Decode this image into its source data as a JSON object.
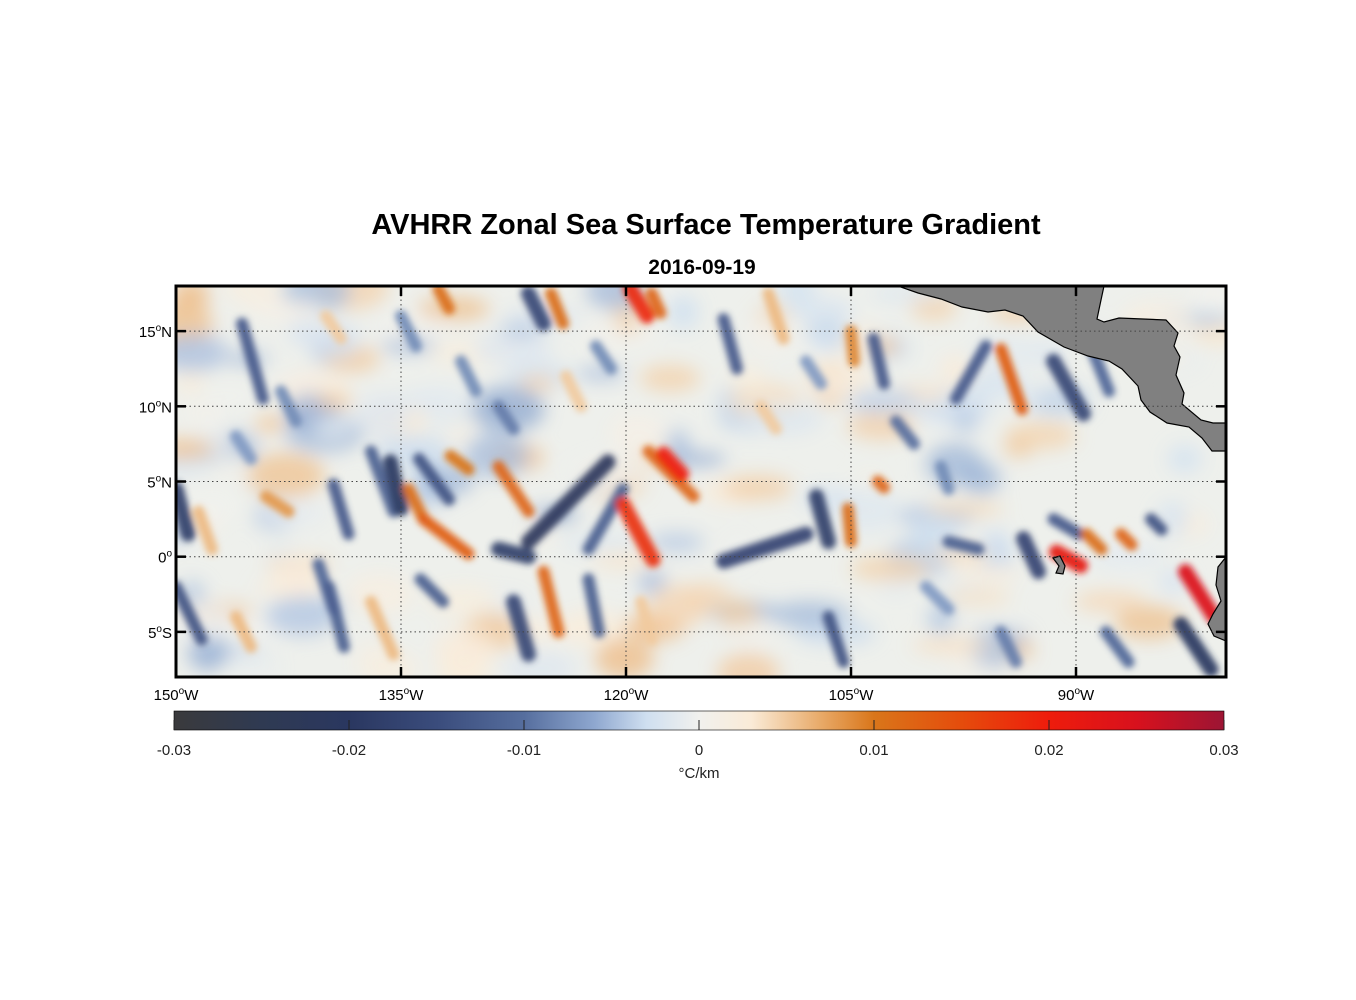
{
  "title": "AVHRR Zonal Sea Surface Temperature Gradient",
  "subtitle": "2016-09-19",
  "map": {
    "lon_range": [
      -150,
      -80
    ],
    "lat_range": [
      -8,
      18
    ],
    "x_ticks": [
      {
        "lon": -150,
        "deg": "150",
        "hem": "W"
      },
      {
        "lon": -135,
        "deg": "135",
        "hem": "W"
      },
      {
        "lon": -120,
        "deg": "120",
        "hem": "W"
      },
      {
        "lon": -105,
        "deg": "105",
        "hem": "W"
      },
      {
        "lon": -90,
        "deg": "90",
        "hem": "W"
      }
    ],
    "y_ticks": [
      {
        "lat": 15,
        "deg": "15",
        "hem": "N"
      },
      {
        "lat": 10,
        "deg": "10",
        "hem": "N"
      },
      {
        "lat": 5,
        "deg": "5",
        "hem": "N"
      },
      {
        "lat": 0,
        "deg": "0",
        "hem": ""
      },
      {
        "lat": -5,
        "deg": "5",
        "hem": "S"
      }
    ],
    "degree_symbol": "o",
    "land_color": "#808080",
    "features": [
      {
        "lon1": -150,
        "lat1": 4.5,
        "lon2": -149.2,
        "lat2": 1.5,
        "v": -0.018
      },
      {
        "lon1": -148.5,
        "lat1": 3,
        "lon2": -147.6,
        "lat2": 0.5,
        "v": 0.006
      },
      {
        "lon1": -150,
        "lat1": -2,
        "lon2": -148.3,
        "lat2": -5.5,
        "v": -0.014
      },
      {
        "lon1": -145.6,
        "lat1": 15.5,
        "lon2": -144.2,
        "lat2": 10.5,
        "v": -0.013
      },
      {
        "lon1": -144,
        "lat1": 4,
        "lon2": -142.5,
        "lat2": 3,
        "v": 0.008
      },
      {
        "lon1": -146,
        "lat1": -4,
        "lon2": -145,
        "lat2": -6,
        "v": 0.006
      },
      {
        "lon1": -139.5,
        "lat1": 4.8,
        "lon2": -138.5,
        "lat2": 1.5,
        "v": -0.013
      },
      {
        "lon1": -137,
        "lat1": 7,
        "lon2": -135.5,
        "lat2": 3,
        "v": -0.012
      },
      {
        "lon1": -140.5,
        "lat1": -0.5,
        "lon2": -139.5,
        "lat2": -3.5,
        "v": -0.011
      },
      {
        "lon1": -139.8,
        "lat1": -2,
        "lon2": -138.8,
        "lat2": -6,
        "v": -0.012
      },
      {
        "lon1": -137,
        "lat1": -3,
        "lon2": -135.5,
        "lat2": -6.5,
        "v": 0.006
      },
      {
        "lon1": -135.7,
        "lat1": 6.3,
        "lon2": -135,
        "lat2": 3.2,
        "v": -0.02
      },
      {
        "lon1": -133.8,
        "lat1": 6.5,
        "lon2": -131.8,
        "lat2": 3.8,
        "v": -0.014
      },
      {
        "lon1": -134.5,
        "lat1": 4.5,
        "lon2": -133.5,
        "lat2": 2.5,
        "v": 0.011
      },
      {
        "lon1": -133.5,
        "lat1": 2.5,
        "lon2": -130.5,
        "lat2": 0.2,
        "v": 0.013
      },
      {
        "lon1": -131.7,
        "lat1": 6.7,
        "lon2": -130.5,
        "lat2": 5.8,
        "v": 0.01
      },
      {
        "lon1": -132.5,
        "lat1": 17.8,
        "lon2": -131.8,
        "lat2": 16.5,
        "v": 0.011
      },
      {
        "lon1": -133.7,
        "lat1": -1.5,
        "lon2": -132.2,
        "lat2": -3,
        "v": -0.012
      },
      {
        "lon1": -128.5,
        "lat1": 6,
        "lon2": -126.5,
        "lat2": 3,
        "v": 0.012
      },
      {
        "lon1": -126.5,
        "lat1": 17.5,
        "lon2": -125.5,
        "lat2": 15.5,
        "v": -0.016
      },
      {
        "lon1": -125,
        "lat1": 17.5,
        "lon2": -124.2,
        "lat2": 15.5,
        "v": 0.011
      },
      {
        "lon1": -127.5,
        "lat1": -3,
        "lon2": -126.5,
        "lat2": -6.5,
        "v": -0.016
      },
      {
        "lon1": -125.5,
        "lat1": -1,
        "lon2": -124.5,
        "lat2": -5,
        "v": 0.012
      },
      {
        "lon1": -128.5,
        "lat1": 0.5,
        "lon2": -126.5,
        "lat2": 0,
        "v": -0.018
      },
      {
        "lon1": -126.5,
        "lat1": 1,
        "lon2": -121.2,
        "lat2": 6.3,
        "v": -0.021
      },
      {
        "lon1": -122.5,
        "lat1": 0.5,
        "lon2": -120.2,
        "lat2": 4.5,
        "v": -0.012
      },
      {
        "lon1": -122.5,
        "lat1": -1.5,
        "lon2": -121.8,
        "lat2": -5,
        "v": -0.012
      },
      {
        "lon1": -120.2,
        "lat1": 3.5,
        "lon2": -118.2,
        "lat2": -0.2,
        "v": 0.018
      },
      {
        "lon1": -119.7,
        "lat1": 17.8,
        "lon2": -118.6,
        "lat2": 16,
        "v": 0.019
      },
      {
        "lon1": -118.3,
        "lat1": 17.5,
        "lon2": -117.7,
        "lat2": 16.2,
        "v": 0.012
      },
      {
        "lon1": -118.5,
        "lat1": 7,
        "lon2": -115.5,
        "lat2": 4,
        "v": 0.012
      },
      {
        "lon1": -117.5,
        "lat1": 6.8,
        "lon2": -116.3,
        "lat2": 5.5,
        "v": 0.02
      },
      {
        "lon1": -119,
        "lat1": -3,
        "lon2": -118.3,
        "lat2": -5.5,
        "v": 0.005
      },
      {
        "lon1": -113.5,
        "lat1": 15.8,
        "lon2": -112.6,
        "lat2": 12.5,
        "v": -0.013
      },
      {
        "lon1": -110.5,
        "lat1": 17.5,
        "lon2": -109.5,
        "lat2": 14.5,
        "v": 0.006
      },
      {
        "lon1": -113.5,
        "lat1": -0.3,
        "lon2": -108,
        "lat2": 1.5,
        "v": -0.017
      },
      {
        "lon1": -107.3,
        "lat1": 4,
        "lon2": -106.5,
        "lat2": 1,
        "v": -0.018
      },
      {
        "lon1": -105.2,
        "lat1": 3.2,
        "lon2": -105,
        "lat2": 1,
        "v": 0.011
      },
      {
        "lon1": -106.5,
        "lat1": -4,
        "lon2": -105.5,
        "lat2": -7,
        "v": -0.014
      },
      {
        "lon1": -105,
        "lat1": 15,
        "lon2": -104.8,
        "lat2": 13,
        "v": 0.009
      },
      {
        "lon1": -103.5,
        "lat1": 14.5,
        "lon2": -102.8,
        "lat2": 11.5,
        "v": -0.013
      },
      {
        "lon1": -103.2,
        "lat1": 5,
        "lon2": -102.8,
        "lat2": 4.6,
        "v": 0.012
      },
      {
        "lon1": -102,
        "lat1": 9,
        "lon2": -100.8,
        "lat2": 7.5,
        "v": -0.01
      },
      {
        "lon1": -99,
        "lat1": 6,
        "lon2": -98.5,
        "lat2": 4.5,
        "v": -0.008
      },
      {
        "lon1": -98.5,
        "lat1": 1,
        "lon2": -96.5,
        "lat2": 0.5,
        "v": -0.012
      },
      {
        "lon1": -96,
        "lat1": 14,
        "lon2": -98,
        "lat2": 10.5,
        "v": -0.013
      },
      {
        "lon1": -95,
        "lat1": 13.8,
        "lon2": -93.6,
        "lat2": 9.8,
        "v": 0.013
      },
      {
        "lon1": -91.5,
        "lat1": 13,
        "lon2": -89.5,
        "lat2": 9.5,
        "v": -0.016
      },
      {
        "lon1": -89,
        "lat1": 14,
        "lon2": -87.8,
        "lat2": 11,
        "v": -0.011
      },
      {
        "lon1": -93.5,
        "lat1": 1.2,
        "lon2": -92.5,
        "lat2": -1,
        "v": -0.017
      },
      {
        "lon1": -91.5,
        "lat1": 2.5,
        "lon2": -89.8,
        "lat2": 1.5,
        "v": -0.013
      },
      {
        "lon1": -91.3,
        "lat1": 0.3,
        "lon2": -89.7,
        "lat2": -0.6,
        "v": 0.022
      },
      {
        "lon1": -89.3,
        "lat1": 1.5,
        "lon2": -88.3,
        "lat2": 0.5,
        "v": 0.011
      },
      {
        "lon1": -87,
        "lat1": 1.5,
        "lon2": -86.3,
        "lat2": 0.8,
        "v": 0.012
      },
      {
        "lon1": -85,
        "lat1": 2.5,
        "lon2": -84.3,
        "lat2": 1.8,
        "v": -0.014
      },
      {
        "lon1": -82.7,
        "lat1": -1,
        "lon2": -80.8,
        "lat2": -4,
        "v": 0.024
      },
      {
        "lon1": -83,
        "lat1": -4.5,
        "lon2": -81,
        "lat2": -7.5,
        "v": -0.02
      },
      {
        "lon1": -88,
        "lat1": -5,
        "lon2": -86.5,
        "lat2": -7,
        "v": -0.011
      },
      {
        "lon1": -95,
        "lat1": -5,
        "lon2": -94,
        "lat2": -7,
        "v": -0.009
      },
      {
        "lon1": -100,
        "lat1": -2,
        "lon2": -98.5,
        "lat2": -3.5,
        "v": -0.007
      },
      {
        "lon1": -143,
        "lat1": 11,
        "lon2": -142,
        "lat2": 9,
        "v": -0.008
      },
      {
        "lon1": -131,
        "lat1": 13,
        "lon2": -130,
        "lat2": 11,
        "v": -0.008
      },
      {
        "lon1": -128.5,
        "lat1": 10,
        "lon2": -127.5,
        "lat2": 8.5,
        "v": -0.009
      },
      {
        "lon1": -124,
        "lat1": 12,
        "lon2": -123,
        "lat2": 10,
        "v": 0.005
      },
      {
        "lon1": -122,
        "lat1": 14,
        "lon2": -121,
        "lat2": 12.5,
        "v": -0.008
      },
      {
        "lon1": -111,
        "lat1": 10,
        "lon2": -110,
        "lat2": 8.5,
        "v": 0.005
      },
      {
        "lon1": -108,
        "lat1": 13,
        "lon2": -107,
        "lat2": 11.5,
        "v": -0.007
      },
      {
        "lon1": -135,
        "lat1": 16,
        "lon2": -134,
        "lat2": 14,
        "v": -0.008
      },
      {
        "lon1": -140,
        "lat1": 16,
        "lon2": -139,
        "lat2": 14.5,
        "v": 0.005
      },
      {
        "lon1": -146,
        "lat1": 8,
        "lon2": -145,
        "lat2": 6.5,
        "v": -0.007
      }
    ]
  },
  "colorbar": {
    "min": -0.03,
    "max": 0.03,
    "ticks": [
      {
        "value": -0.03,
        "label": "-0.03"
      },
      {
        "value": -0.02,
        "label": "-0.02"
      },
      {
        "value": -0.01,
        "label": "-0.01"
      },
      {
        "value": 0,
        "label": "0"
      },
      {
        "value": 0.01,
        "label": "0.01"
      },
      {
        "value": 0.02,
        "label": "0.02"
      },
      {
        "value": 0.03,
        "label": "0.03"
      }
    ],
    "unit_label": "°C/km",
    "stops": [
      {
        "value": -0.03,
        "color": "#3a3a3c"
      },
      {
        "value": -0.025,
        "color": "#2f3a52"
      },
      {
        "value": -0.02,
        "color": "#2a3760"
      },
      {
        "value": -0.015,
        "color": "#3a4c7c"
      },
      {
        "value": -0.01,
        "color": "#566e9e"
      },
      {
        "value": -0.006,
        "color": "#8ea7cf"
      },
      {
        "value": -0.003,
        "color": "#cfdff0"
      },
      {
        "value": 0,
        "color": "#f1f1ee"
      },
      {
        "value": 0.003,
        "color": "#faebd7"
      },
      {
        "value": 0.007,
        "color": "#e8a967"
      },
      {
        "value": 0.01,
        "color": "#d9761a"
      },
      {
        "value": 0.015,
        "color": "#e54c0c"
      },
      {
        "value": 0.02,
        "color": "#ee1c0c"
      },
      {
        "value": 0.025,
        "color": "#d8111d"
      },
      {
        "value": 0.03,
        "color": "#9c1534"
      }
    ]
  }
}
